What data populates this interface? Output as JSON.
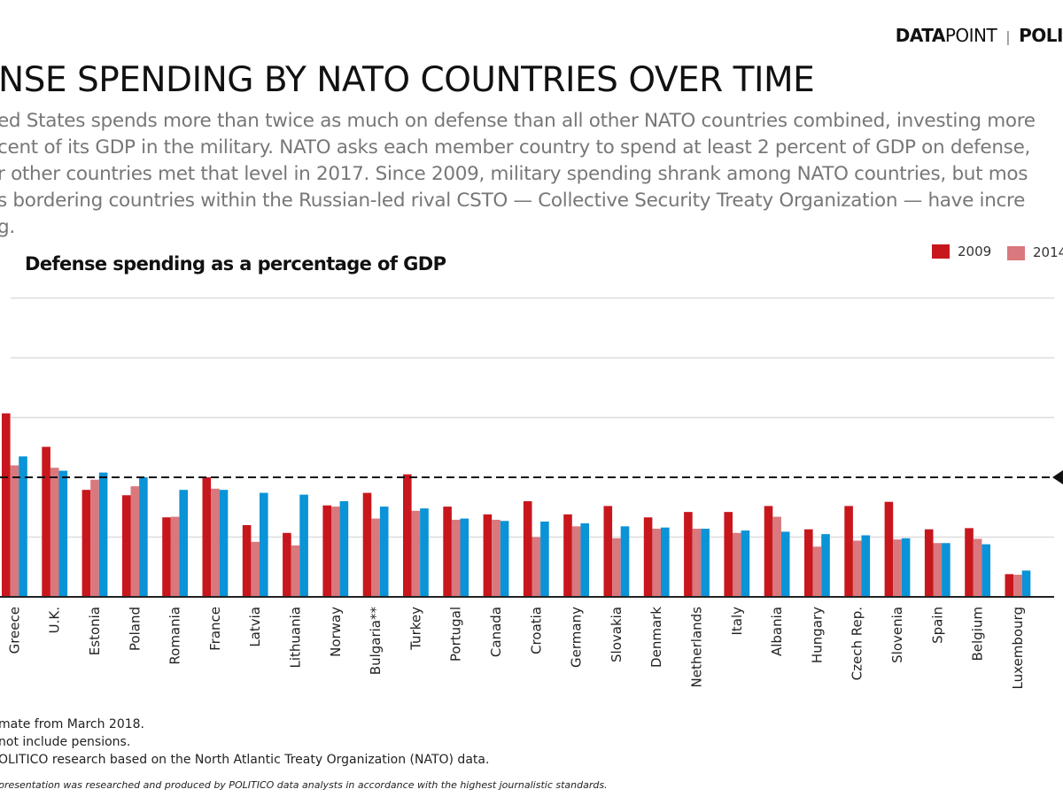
{
  "header": {
    "brand_bold": "DATA",
    "brand_light": "POINT",
    "separator": "|",
    "publisher": "POLI"
  },
  "title": "NSE SPENDING BY NATO COUNTRIES OVER TIME",
  "body_lines": [
    "ed States spends more than twice as much on defense than all other NATO countries combined, investing more",
    "cent of its GDP in the military. NATO asks each member country to spend at least 2 percent of GDP on defense,",
    "r other countries met that level in 2017. Since 2009, military spending shrank among NATO countries, but mos",
    "s bordering countries within the Russian-led rival CSTO — Collective Security Treaty Organization — have incre",
    "g."
  ],
  "footnotes": [
    "mate from March 2018.",
    "not include pensions.",
    "OLITICO research based on the North Atlantic Treaty Organization (NATO) data."
  ],
  "credit": "presentation was researched and produced by POLITICO data analysts in accordance with the highest journalistic standards.",
  "colors": {
    "s2009": "#c8161d",
    "s2014": "#d9787d",
    "s2017": "#0a93d6",
    "grid": "#dddddd",
    "axis": "#222222"
  },
  "chart_data": {
    "type": "bar",
    "title": "Defense spending as a percentage of GDP",
    "ylabel": "",
    "ylim": [
      0,
      5
    ],
    "grid": true,
    "reference_line": {
      "value": 2,
      "style": "dashed"
    },
    "legend": {
      "placement": "top-right",
      "entries": [
        "2009",
        "2014"
      ]
    },
    "categories": [
      "Greece",
      "U.K.",
      "Estonia",
      "Poland",
      "Romania",
      "France",
      "Latvia",
      "Lithuania",
      "Norway",
      "Bulgaria**",
      "Turkey",
      "Portugal",
      "Canada",
      "Croatia",
      "Germany",
      "Slovakia",
      "Denmark",
      "Netherlands",
      "Italy",
      "Albania",
      "Hungary",
      "Czech Rep.",
      "Slovenia",
      "Spain",
      "Belgium",
      "Luxembourg"
    ],
    "series": [
      {
        "name": "2009",
        "color": "#c8161d",
        "values": [
          3.07,
          2.51,
          1.79,
          1.7,
          1.33,
          2.0,
          1.2,
          1.07,
          1.53,
          1.74,
          2.05,
          1.51,
          1.38,
          1.6,
          1.38,
          1.52,
          1.33,
          1.42,
          1.42,
          1.52,
          1.13,
          1.52,
          1.59,
          1.13,
          1.15,
          0.38
        ]
      },
      {
        "name": "2014",
        "color": "#d9787d",
        "values": [
          2.2,
          2.16,
          1.96,
          1.85,
          1.34,
          1.81,
          0.92,
          0.86,
          1.51,
          1.31,
          1.44,
          1.29,
          1.29,
          1.0,
          1.18,
          0.98,
          1.14,
          1.14,
          1.07,
          1.34,
          0.84,
          0.94,
          0.96,
          0.9,
          0.97,
          0.37
        ]
      },
      {
        "color": "#0a93d6",
        "values": [
          2.35,
          2.11,
          2.08,
          2.0,
          1.79,
          1.79,
          1.74,
          1.71,
          1.6,
          1.51,
          1.48,
          1.31,
          1.27,
          1.26,
          1.23,
          1.18,
          1.16,
          1.14,
          1.11,
          1.09,
          1.05,
          1.03,
          0.98,
          0.9,
          0.88,
          0.44
        ]
      }
    ]
  }
}
